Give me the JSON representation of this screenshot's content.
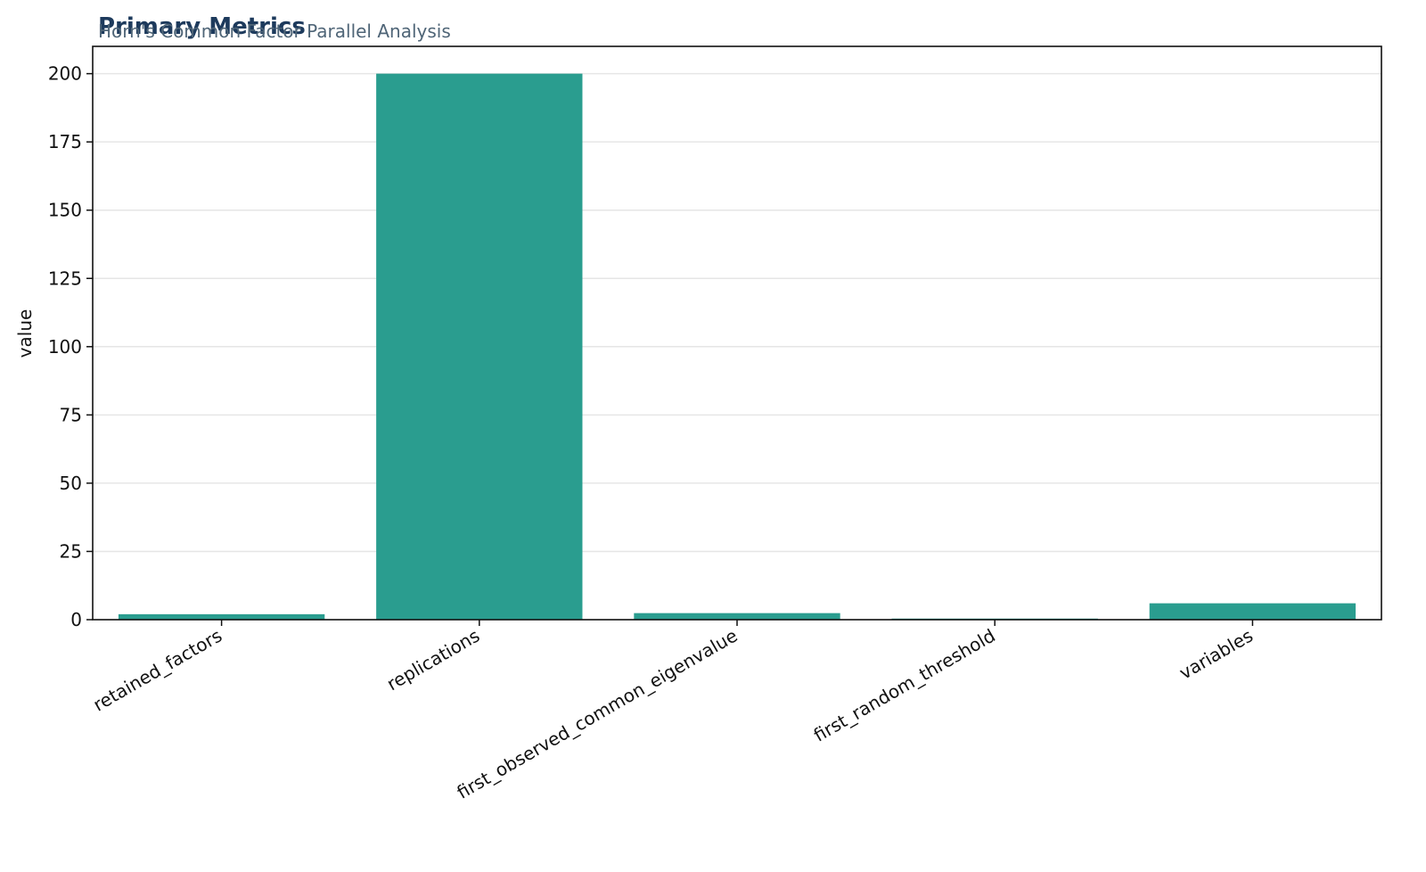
{
  "chart_data": {
    "type": "bar",
    "title": "Primary Metrics",
    "subtitle": "Horn's Common Factor Parallel Analysis",
    "y_label": "value",
    "categories": [
      "retained_factors",
      "replications",
      "first_observed_common_eigenvalue",
      "first_random_threshold",
      "variables"
    ],
    "values": [
      2,
      200,
      2.4,
      0.4,
      6
    ],
    "color": "#2a9d8f",
    "ylim": [
      0,
      210
    ],
    "yticks": [
      0,
      25,
      50,
      75,
      100,
      125,
      150,
      175,
      200
    ],
    "grid": true
  }
}
